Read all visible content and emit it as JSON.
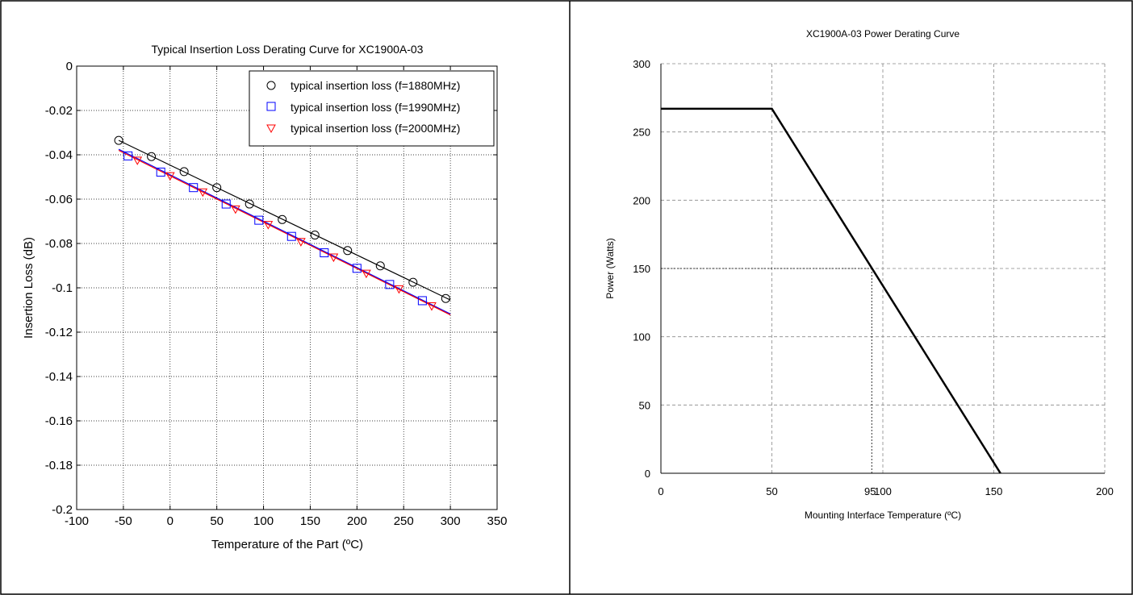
{
  "chart_data": [
    {
      "type": "scatter",
      "title": "Typical Insertion Loss Derating Curve for XC1900A-03",
      "xlabel": "Temperature of the Part (ºC)",
      "ylabel": "Insertion Loss (dB)",
      "xlim": [
        -100,
        350
      ],
      "ylim": [
        -0.2,
        0
      ],
      "xticks": [
        "-100",
        "-50",
        "0",
        "50",
        "100",
        "150",
        "200",
        "250",
        "300",
        "350"
      ],
      "yticks": [
        "0",
        "-0.02",
        "-0.04",
        "-0.06",
        "-0.08",
        "-0.1",
        "-0.12",
        "-0.14",
        "-0.16",
        "-0.18",
        "-0.2"
      ],
      "grid": true,
      "legend_position": "top-right",
      "series": [
        {
          "name": "typical insertion loss (f=1880MHz)",
          "marker": "circle",
          "color": "#000000",
          "x": [
            -55,
            -20,
            15,
            50,
            85,
            120,
            155,
            190,
            225,
            260,
            295
          ],
          "y": [
            -0.0335,
            -0.0408,
            -0.0476,
            -0.0548,
            -0.0622,
            -0.0692,
            -0.0762,
            -0.0832,
            -0.0901,
            -0.0975,
            -0.1048
          ],
          "fit": {
            "x": [
              -55,
              300
            ],
            "y": [
              -0.0335,
              -0.1055
            ],
            "color": "#000000"
          }
        },
        {
          "name": "typical insertion loss (f=1990MHz)",
          "marker": "square",
          "color": "#0000ff",
          "x": [
            -45,
            -10,
            25,
            60,
            95,
            130,
            165,
            200,
            235,
            270
          ],
          "y": [
            -0.0405,
            -0.0478,
            -0.0548,
            -0.0622,
            -0.0695,
            -0.0768,
            -0.0842,
            -0.0912,
            -0.0985,
            -0.1058
          ],
          "fit": {
            "x": [
              -55,
              300
            ],
            "y": [
              -0.0375,
              -0.1118
            ],
            "color": "#0000ff"
          }
        },
        {
          "name": "typical insertion loss (f=2000MHz)",
          "marker": "triangle-down",
          "color": "#ff0000",
          "x": [
            -35,
            0,
            35,
            70,
            105,
            140,
            175,
            210,
            245,
            280
          ],
          "y": [
            -0.0425,
            -0.0495,
            -0.0568,
            -0.0645,
            -0.0715,
            -0.0792,
            -0.0862,
            -0.0935,
            -0.1005,
            -0.1082
          ],
          "fit": {
            "x": [
              -55,
              300
            ],
            "y": [
              -0.038,
              -0.1122
            ],
            "color": "#ff0000"
          }
        }
      ]
    },
    {
      "type": "line",
      "title": "XC1900A-03 Power Derating Curve",
      "xlabel": "Mounting Interface Temperature (ºC)",
      "ylabel": "Power (Watts)",
      "xlim": [
        0,
        200
      ],
      "ylim": [
        0,
        300
      ],
      "xticks": [
        "0",
        "50",
        "100",
        "150",
        "200"
      ],
      "yticks": [
        "0",
        "50",
        "100",
        "150",
        "200",
        "250",
        "300"
      ],
      "grid": true,
      "series": [
        {
          "x": [
            0,
            50,
            153
          ],
          "y": [
            267,
            267,
            0
          ],
          "color": "#000000"
        }
      ],
      "annotation": {
        "label": "95",
        "x": 95,
        "y": 150
      }
    }
  ]
}
